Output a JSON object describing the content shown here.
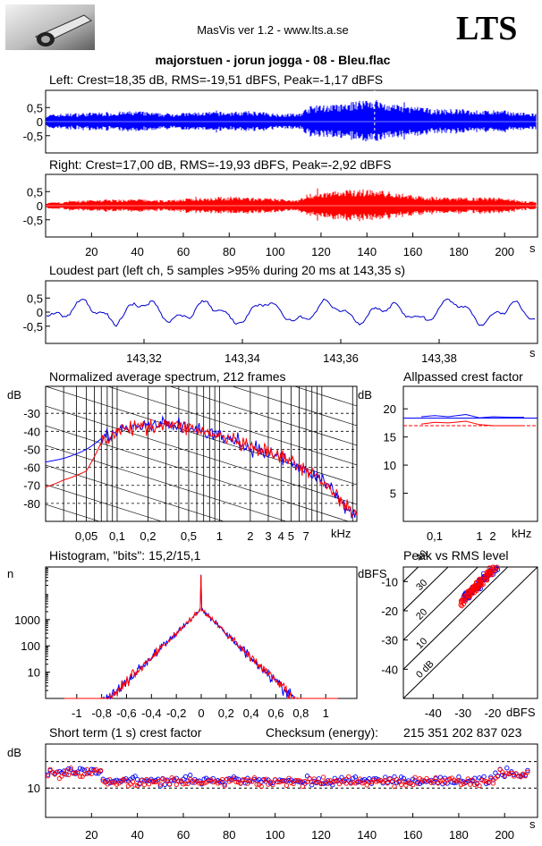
{
  "header": {
    "title": "MasVis ver 1.2 - www.lts.a.se",
    "logo_text": "LTS",
    "track": "majorstuen - jorun jogga - 08 - Bleu.flac"
  },
  "chart_data": [
    {
      "id": "left",
      "type": "line",
      "title": "Left: Crest=18,35 dB, RMS=-19,51 dBFS, Peak=-1,17 dBFS",
      "color": "#0000ff",
      "ylim": [
        -1,
        1
      ],
      "yticks": [
        "0,5",
        "0",
        "-0,5"
      ],
      "envelope": {
        "x": [
          0,
          10,
          20,
          30,
          40,
          50,
          60,
          70,
          80,
          90,
          100,
          110,
          115,
          120,
          130,
          140,
          150,
          160,
          170,
          180,
          190,
          200,
          210
        ],
        "amp": [
          0.25,
          0.3,
          0.33,
          0.35,
          0.38,
          0.3,
          0.32,
          0.35,
          0.35,
          0.38,
          0.3,
          0.28,
          0.55,
          0.6,
          0.62,
          0.85,
          0.62,
          0.55,
          0.45,
          0.45,
          0.4,
          0.4,
          0.3
        ]
      }
    },
    {
      "id": "right",
      "type": "line",
      "title": "Right: Crest=17,00 dB, RMS=-19,93 dBFS, Peak=-2,92 dBFS",
      "color": "#ff0000",
      "ylim": [
        -1,
        1
      ],
      "yticks": [
        "0,5",
        "0",
        "-0,5"
      ],
      "xticks": [
        "20",
        "40",
        "60",
        "80",
        "100",
        "120",
        "140",
        "160",
        "180",
        "200"
      ],
      "xunit": "s",
      "envelope": {
        "x": [
          0,
          10,
          20,
          30,
          40,
          50,
          60,
          70,
          80,
          90,
          100,
          110,
          115,
          120,
          130,
          140,
          150,
          160,
          170,
          180,
          190,
          200,
          210
        ],
        "amp": [
          0.1,
          0.15,
          0.22,
          0.22,
          0.24,
          0.2,
          0.25,
          0.3,
          0.33,
          0.3,
          0.25,
          0.22,
          0.45,
          0.5,
          0.55,
          0.6,
          0.5,
          0.38,
          0.32,
          0.3,
          0.3,
          0.3,
          0.15
        ]
      }
    },
    {
      "id": "loudest",
      "type": "line",
      "title": "Loudest part (left  ch, 5 samples >95% during 20 ms at 143,35 s)",
      "color": "#0000cc",
      "ylim": [
        -1,
        1
      ],
      "yticks": [
        "0,5",
        "0",
        "-0,5"
      ],
      "xlim": [
        143.3,
        143.4
      ],
      "xticks": [
        "143,32",
        "143,34",
        "143,36",
        "143,38"
      ],
      "xunit": "s"
    },
    {
      "id": "spectrum",
      "type": "line",
      "title": "Normalized average spectrum, 212 frames",
      "ylabel": "dB",
      "ylim": [
        -90,
        -15
      ],
      "yticks": [
        "-30",
        "-40",
        "-50",
        "-60",
        "-70",
        "-80"
      ],
      "xscale": "log",
      "xlim_khz": [
        0.02,
        22
      ],
      "xticks": [
        "0,05",
        "0,1",
        "0,2",
        "0,5",
        "1",
        "2",
        "3",
        "4",
        "5",
        "7"
      ],
      "xunit": "kHz",
      "series": [
        {
          "color": "#0000ff",
          "x": [
            0.02,
            0.03,
            0.05,
            0.07,
            0.1,
            0.15,
            0.2,
            0.3,
            0.5,
            0.7,
            1,
            1.5,
            2,
            3,
            5,
            7,
            10,
            15,
            20
          ],
          "y": [
            -57,
            -55,
            -50,
            -44,
            -40,
            -38,
            -37,
            -36,
            -38,
            -40,
            -43,
            -46,
            -50,
            -52,
            -57,
            -62,
            -67,
            -78,
            -85
          ]
        },
        {
          "color": "#ff0000",
          "x": [
            0.02,
            0.03,
            0.05,
            0.07,
            0.1,
            0.15,
            0.2,
            0.3,
            0.5,
            0.7,
            1,
            1.5,
            2,
            3,
            5,
            7,
            10,
            15,
            20
          ],
          "y": [
            -71,
            -67,
            -62,
            -46,
            -40,
            -38,
            -37,
            -36,
            -38,
            -40,
            -43,
            -46,
            -50,
            -52,
            -57,
            -62,
            -67,
            -78,
            -85
          ]
        }
      ]
    },
    {
      "id": "allpassed",
      "type": "line",
      "title": "Allpassed crest factor",
      "ylabel": "dB",
      "ylim": [
        0,
        24
      ],
      "yticks": [
        "20",
        "15",
        "10",
        "5"
      ],
      "xscale": "log",
      "xticks": [
        "0,1",
        "1",
        "2"
      ],
      "xunit": "kHz",
      "series": [
        {
          "color": "#0000ff",
          "x": [
            0.05,
            0.1,
            0.2,
            0.5,
            1,
            2,
            5,
            10
          ],
          "y": [
            18.6,
            18.8,
            18.6,
            19.0,
            18.4,
            18.6,
            18.5,
            18.5
          ]
        },
        {
          "color": "#ff0000",
          "x": [
            0.05,
            0.1,
            0.2,
            0.5,
            1,
            2,
            5,
            10
          ],
          "y": [
            17.3,
            17.6,
            17.5,
            17.8,
            17.2,
            17.0,
            17.0,
            17.0
          ]
        }
      ],
      "reference_lines": {
        "left_crest": 18.35,
        "right_crest": 17.0
      }
    },
    {
      "id": "histogram",
      "type": "line",
      "title": "Histogram, \"bits\": 15,2/15,1",
      "ylabel": "n",
      "yscale": "log",
      "yticks": [
        "1000",
        "100",
        "10"
      ],
      "xlim": [
        -1.25,
        1.25
      ],
      "xticks": [
        "-1",
        "-0,8",
        "-0,6",
        "-0,4",
        "-0,2",
        "0",
        "0,2",
        "0,4",
        "0,6",
        "0,8",
        "1"
      ]
    },
    {
      "id": "peak_vs_rms",
      "type": "scatter",
      "title": "Peak vs RMS level",
      "ylabel": "dBFS",
      "yticks": [
        "-10",
        "-20",
        "-30",
        "-40"
      ],
      "xticks": [
        "-40",
        "-30",
        "-20"
      ],
      "xunit": "dBFS",
      "diagonal_labels": [
        "40",
        "30",
        "20",
        "10",
        "0 dB"
      ]
    },
    {
      "id": "short_term_crest",
      "type": "scatter",
      "title": "Short term (1 s) crest factor",
      "checksum_label": "Checksum (energy):",
      "checksum_value": "215 351 202 837 023",
      "ylabel": "dB",
      "yticks": [
        "10"
      ],
      "xticks": [
        "20",
        "40",
        "60",
        "80",
        "100",
        "120",
        "140",
        "160",
        "180",
        "200"
      ],
      "xunit": "s"
    }
  ]
}
